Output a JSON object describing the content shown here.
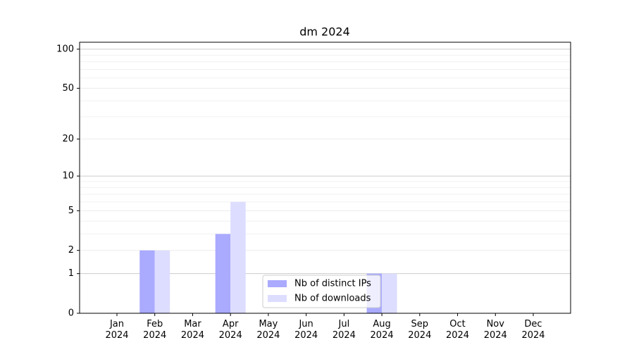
{
  "chart_data": {
    "type": "bar",
    "title": "dm 2024",
    "categories": [
      "Jan\n2024",
      "Feb\n2024",
      "Mar\n2024",
      "Apr\n2024",
      "May\n2024",
      "Jun\n2024",
      "Jul\n2024",
      "Aug\n2024",
      "Sep\n2024",
      "Oct\n2024",
      "Nov\n2024",
      "Dec\n2024"
    ],
    "series": [
      {
        "name": "Nb of distinct IPs",
        "color": "#aaaaff",
        "values": [
          0,
          2,
          0,
          3,
          0,
          0,
          0,
          1,
          0,
          0,
          0,
          0
        ]
      },
      {
        "name": "Nb of downloads",
        "color": "#ddddff",
        "values": [
          0,
          2,
          0,
          6,
          0,
          0,
          0,
          1,
          0,
          0,
          0,
          0
        ]
      }
    ],
    "yscale": "log1p",
    "ylim": [
      0,
      113
    ],
    "yticks": [
      0,
      1,
      2,
      5,
      10,
      20,
      50,
      100
    ],
    "minor_yticks": [
      3,
      4,
      6,
      7,
      8,
      9,
      30,
      40,
      60,
      70,
      80,
      90
    ],
    "grid": true,
    "legend": "lower center"
  }
}
